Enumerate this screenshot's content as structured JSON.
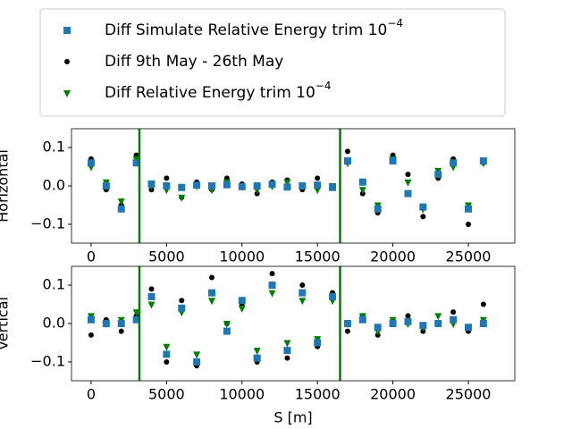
{
  "chart_data": [
    {
      "type": "scatter",
      "ylabel": "Horizontal",
      "xlim": [
        -1300,
        28080
      ],
      "ylim": [
        -0.149,
        0.149
      ],
      "xticks": [
        0,
        5000,
        10000,
        15000,
        20000,
        25000
      ],
      "yticks": [
        {
          "value": -0.1,
          "label": "−0.1"
        },
        {
          "value": 0,
          "label": "0.0"
        },
        {
          "value": 0.1,
          "label": "0.1"
        }
      ],
      "vlines": [
        3200,
        16500
      ],
      "vline_color": "#008000",
      "x": [
        0,
        1000,
        2000,
        3000,
        4000,
        5000,
        6000,
        7000,
        8000,
        9000,
        10000,
        11000,
        12000,
        13000,
        14000,
        15000,
        16000,
        17000,
        18000,
        19000,
        20000,
        21000,
        22000,
        23000,
        24000,
        25000,
        26000
      ],
      "series": [
        {
          "name": "Diff Simulate Relative Energy trim 10",
          "name_sup": "−4",
          "color": "#1f77b4",
          "marker": "square",
          "values": [
            0.06,
            0.0,
            -0.06,
            0.06,
            0.005,
            0,
            -0.004,
            0.002,
            0,
            0.003,
            -0.002,
            0,
            0.004,
            -0.003,
            0,
            0.002,
            -0.004,
            0.065,
            0.01,
            -0.06,
            0.065,
            -0.02,
            -0.055,
            0.03,
            0.06,
            -0.06,
            0.065
          ]
        },
        {
          "name": "Diff 9th May - 26th May",
          "color": "#000000",
          "marker": "circle",
          "values": [
            0.07,
            -0.01,
            -0.05,
            0.08,
            -0.01,
            0.02,
            -0.03,
            0.01,
            -0.01,
            0.02,
            0.005,
            -0.02,
            0.01,
            0.015,
            -0.01,
            0.02,
            0.0,
            0.09,
            -0.02,
            -0.07,
            0.08,
            0.03,
            -0.08,
            0.02,
            0.07,
            -0.1,
            0.06
          ]
        },
        {
          "name": "Diff Relative Energy trim 10",
          "name_sup": "−4",
          "color": "#008000",
          "marker": "triangle",
          "values": [
            0.05,
            0.01,
            -0.04,
            0.07,
            0.0,
            -0.01,
            -0.03,
            0.0,
            -0.01,
            0.01,
            0.0,
            -0.01,
            0.0,
            0.01,
            0.0,
            -0.01,
            0.0,
            0.06,
            -0.01,
            -0.05,
            0.07,
            0.01,
            -0.06,
            0.04,
            0.05,
            -0.05,
            0.06
          ]
        }
      ]
    },
    {
      "type": "scatter",
      "ylabel": "Vertical",
      "xlabel": "S [m]",
      "xlim": [
        -1300,
        28080
      ],
      "ylim": [
        -0.149,
        0.149
      ],
      "xticks": [
        0,
        5000,
        10000,
        15000,
        20000,
        25000
      ],
      "yticks": [
        {
          "value": -0.1,
          "label": "−0.1"
        },
        {
          "value": 0,
          "label": "0.0"
        },
        {
          "value": 0.1,
          "label": "0.1"
        }
      ],
      "vlines": [
        3200,
        16500
      ],
      "vline_color": "#008000",
      "x": [
        0,
        1000,
        2000,
        3000,
        4000,
        5000,
        6000,
        7000,
        8000,
        9000,
        10000,
        11000,
        12000,
        13000,
        14000,
        15000,
        16000,
        17000,
        18000,
        19000,
        20000,
        21000,
        22000,
        23000,
        24000,
        25000,
        26000
      ],
      "series": [
        {
          "color": "#1f77b4",
          "marker": "square",
          "values": [
            0.01,
            0,
            0,
            0.01,
            0.07,
            -0.08,
            0.04,
            -0.1,
            0.08,
            -0.02,
            0.06,
            -0.09,
            0.1,
            -0.07,
            0.08,
            -0.05,
            0.07,
            0,
            0.01,
            -0.01,
            0,
            0.005,
            -0.005,
            0,
            0.01,
            -0.01,
            0
          ]
        },
        {
          "color": "#000000",
          "marker": "circle",
          "values": [
            -0.03,
            0.01,
            -0.02,
            0.02,
            0.09,
            -0.1,
            0.06,
            -0.11,
            0.12,
            0.0,
            0.05,
            -0.1,
            0.13,
            -0.09,
            0.1,
            -0.06,
            0.08,
            -0.02,
            0.02,
            -0.03,
            0.01,
            0.02,
            -0.02,
            0.0,
            0.03,
            -0.02,
            0.05
          ]
        },
        {
          "color": "#008000",
          "marker": "triangle",
          "values": [
            0.02,
            0.0,
            0.01,
            0.03,
            0.05,
            -0.06,
            0.03,
            -0.08,
            0.06,
            0.0,
            0.04,
            -0.07,
            0.08,
            -0.05,
            0.06,
            -0.04,
            0.06,
            0.0,
            0.02,
            -0.02,
            0.01,
            0.0,
            -0.01,
            0.02,
            0.0,
            -0.01,
            0.01
          ]
        }
      ]
    }
  ]
}
